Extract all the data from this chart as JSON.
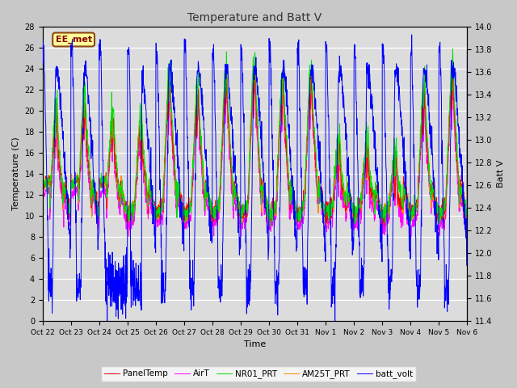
{
  "title": "Temperature and Batt V",
  "xlabel": "Time",
  "ylabel_left": "Temperature (C)",
  "ylabel_right": "Batt V",
  "ylim_left": [
    0,
    28
  ],
  "ylim_right": [
    11.4,
    14.0
  ],
  "fig_bg_color": "#c8c8c8",
  "plot_bg_color": "#dcdcdc",
  "grid_color": "white",
  "xtick_labels": [
    "Oct 22",
    "Oct 23",
    "Oct 24",
    "Oct 25",
    "Oct 26",
    "Oct 27",
    "Oct 28",
    "Oct 29",
    "Oct 30",
    "Oct 31",
    "Nov 1",
    "Nov 2",
    "Nov 3",
    "Nov 4",
    "Nov 5",
    "Nov 6"
  ],
  "legend_entries": [
    "PanelTemp",
    "AirT",
    "NR01_PRT",
    "AM25T_PRT",
    "batt_volt"
  ],
  "legend_colors": [
    "#ff0000",
    "#ff00ff",
    "#00cc00",
    "#ff8800",
    "#0000ff"
  ],
  "station_label": "EE_met",
  "n_points": 2000
}
